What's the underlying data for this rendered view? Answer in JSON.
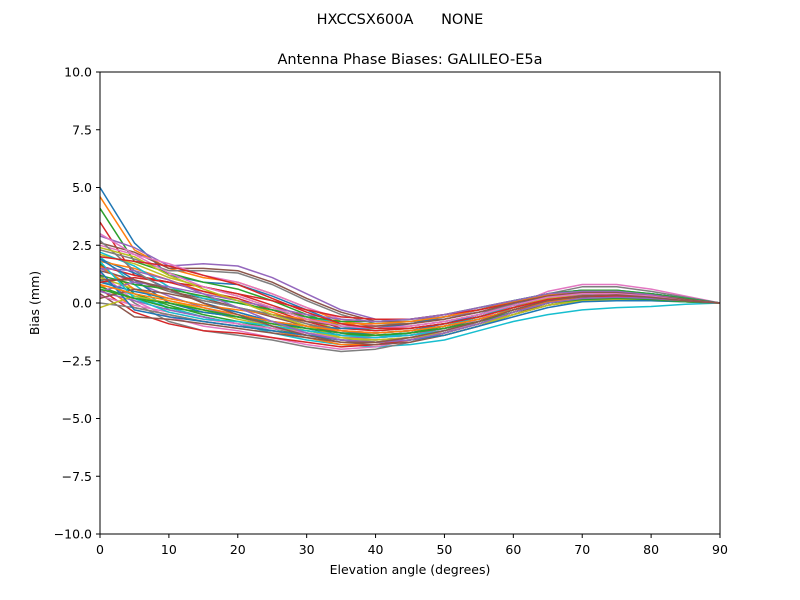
{
  "figure": {
    "suptitle": "HXCCSX600A      NONE"
  },
  "chart_data": {
    "type": "line",
    "title": "Antenna Phase Biases: GALILEO-E5a",
    "xlabel": "Elevation angle (degrees)",
    "ylabel": "Bias (mm)",
    "xlim": [
      0,
      90
    ],
    "ylim": [
      -10,
      10
    ],
    "x_ticks": [
      0,
      10,
      20,
      30,
      40,
      50,
      60,
      70,
      80,
      90
    ],
    "x_tick_labels": [
      "0",
      "10",
      "20",
      "30",
      "40",
      "50",
      "60",
      "70",
      "80",
      "90"
    ],
    "y_ticks": [
      -10,
      -7.5,
      -5,
      -2.5,
      0,
      2.5,
      5,
      7.5,
      10
    ],
    "y_tick_labels": [
      "−10.0",
      "−7.5",
      "−5.0",
      "−2.5",
      "0.0",
      "2.5",
      "5.0",
      "7.5",
      "10.0"
    ],
    "grid": false,
    "legend": "none",
    "x": [
      0,
      5,
      10,
      15,
      20,
      25,
      30,
      35,
      40,
      45,
      50,
      55,
      60,
      65,
      70,
      75,
      80,
      85,
      90
    ],
    "series_colors": [
      "#1f77b4",
      "#ff7f0e",
      "#2ca02c",
      "#d62728",
      "#9467bd",
      "#8c564b",
      "#e377c2",
      "#7f7f7f",
      "#bcbd22",
      "#17becf"
    ],
    "series": [
      {
        "values": [
          5.0,
          2.6,
          1.2,
          0.9,
          0.8,
          0.3,
          -0.3,
          -0.9,
          -1.1,
          -1.0,
          -0.8,
          -0.5,
          0.0,
          0.3,
          0.4,
          0.4,
          0.3,
          0.15,
          0.0
        ]
      },
      {
        "values": [
          4.6,
          2.3,
          1.5,
          1.1,
          0.9,
          0.4,
          -0.2,
          -0.8,
          -1.0,
          -1.0,
          -0.8,
          -0.5,
          -0.1,
          0.2,
          0.35,
          0.35,
          0.25,
          0.1,
          0.0
        ]
      },
      {
        "values": [
          4.1,
          1.8,
          1.3,
          0.9,
          0.6,
          0.1,
          -0.5,
          -1.0,
          -1.2,
          -1.1,
          -0.9,
          -0.6,
          -0.2,
          0.2,
          0.3,
          0.3,
          0.2,
          0.1,
          0.0
        ]
      },
      {
        "values": [
          3.5,
          1.2,
          0.9,
          0.7,
          0.4,
          -0.1,
          -0.6,
          -1.1,
          -1.2,
          -1.1,
          -0.9,
          -0.6,
          -0.2,
          0.15,
          0.3,
          0.3,
          0.2,
          0.1,
          0.0
        ]
      },
      {
        "values": [
          2.9,
          2.4,
          1.6,
          1.7,
          1.6,
          1.1,
          0.4,
          -0.3,
          -0.7,
          -0.7,
          -0.6,
          -0.4,
          -0.1,
          0.2,
          0.3,
          0.3,
          0.25,
          0.1,
          0.0
        ]
      },
      {
        "values": [
          2.6,
          2.2,
          1.5,
          1.5,
          1.4,
          0.9,
          0.2,
          -0.4,
          -0.8,
          -0.8,
          -0.7,
          -0.4,
          -0.1,
          0.2,
          0.3,
          0.3,
          0.2,
          0.1,
          0.0
        ]
      },
      {
        "values": [
          2.5,
          2.1,
          1.7,
          1.2,
          0.9,
          0.4,
          -0.2,
          -0.7,
          -1.0,
          -1.0,
          -0.8,
          -0.5,
          -0.1,
          0.25,
          0.35,
          0.35,
          0.25,
          0.1,
          0.0
        ]
      },
      {
        "values": [
          2.3,
          1.9,
          1.4,
          1.4,
          1.3,
          0.8,
          0.1,
          -0.5,
          -0.9,
          -0.9,
          -0.7,
          -0.4,
          -0.05,
          0.25,
          0.35,
          0.35,
          0.25,
          0.1,
          0.0
        ]
      },
      {
        "values": [
          2.1,
          1.7,
          1.1,
          0.7,
          0.3,
          -0.2,
          -0.7,
          -1.2,
          -1.4,
          -1.3,
          -1.1,
          -0.8,
          -0.4,
          0.0,
          0.2,
          0.25,
          0.2,
          0.1,
          0.0
        ]
      },
      {
        "values": [
          2.0,
          0.8,
          -0.3,
          -0.6,
          -0.9,
          -1.3,
          -1.6,
          -1.8,
          -1.9,
          -1.8,
          -1.6,
          -1.2,
          -0.8,
          -0.5,
          -0.3,
          -0.2,
          -0.15,
          -0.05,
          0.0
        ]
      },
      {
        "values": [
          1.9,
          1.3,
          0.6,
          0.0,
          -0.4,
          -0.8,
          -1.1,
          -1.4,
          -1.5,
          -1.4,
          -1.2,
          -0.8,
          -0.4,
          0.0,
          0.2,
          0.25,
          0.2,
          0.1,
          0.0
        ]
      },
      {
        "values": [
          1.8,
          1.5,
          1.0,
          0.5,
          0.1,
          -0.4,
          -0.9,
          -1.3,
          -1.5,
          -1.4,
          -1.2,
          -0.9,
          -0.5,
          -0.1,
          0.15,
          0.2,
          0.15,
          0.05,
          0.0
        ]
      },
      {
        "values": [
          1.7,
          0.4,
          -0.1,
          -0.5,
          -0.8,
          -1.1,
          -1.4,
          -1.6,
          -1.7,
          -1.6,
          -1.3,
          -0.9,
          -0.4,
          0.0,
          0.2,
          0.25,
          0.2,
          0.1,
          0.0
        ]
      },
      {
        "values": [
          1.6,
          1.2,
          0.9,
          0.5,
          0.2,
          -0.3,
          -0.8,
          -1.2,
          -1.3,
          -1.2,
          -1.0,
          -0.7,
          -0.3,
          0.1,
          0.25,
          0.3,
          0.2,
          0.1,
          0.0
        ]
      },
      {
        "values": [
          1.5,
          0.9,
          0.3,
          -0.2,
          -0.6,
          -1.0,
          -1.3,
          -1.6,
          -1.7,
          -1.6,
          -1.3,
          -0.9,
          -0.5,
          -0.1,
          0.1,
          0.2,
          0.15,
          0.05,
          0.0
        ]
      },
      {
        "values": [
          1.4,
          1.0,
          0.5,
          0.2,
          -0.2,
          -0.6,
          -1.0,
          -1.3,
          -1.4,
          -1.3,
          -1.1,
          -0.7,
          -0.3,
          0.1,
          0.25,
          0.3,
          0.2,
          0.1,
          0.0
        ]
      },
      {
        "values": [
          1.3,
          0.1,
          -0.6,
          -1.0,
          -1.2,
          -1.5,
          -1.8,
          -2.0,
          -1.9,
          -1.6,
          -1.2,
          -0.7,
          -0.1,
          0.5,
          0.8,
          0.8,
          0.6,
          0.3,
          0.0
        ]
      },
      {
        "values": [
          1.2,
          0.0,
          -0.8,
          -1.2,
          -1.4,
          -1.6,
          -1.9,
          -2.1,
          -2.0,
          -1.7,
          -1.3,
          -0.8,
          -0.2,
          0.4,
          0.7,
          0.7,
          0.5,
          0.25,
          0.0
        ]
      },
      {
        "values": [
          1.1,
          0.6,
          0.1,
          -0.3,
          -0.7,
          -1.0,
          -1.3,
          -1.5,
          -1.5,
          -1.3,
          -1.0,
          -0.6,
          -0.2,
          0.2,
          0.4,
          0.45,
          0.35,
          0.15,
          0.0
        ]
      },
      {
        "values": [
          1.0,
          0.3,
          -0.2,
          -0.6,
          -0.9,
          -1.2,
          -1.4,
          -1.5,
          -1.5,
          -1.3,
          -1.0,
          -0.6,
          -0.1,
          0.3,
          0.5,
          0.5,
          0.4,
          0.2,
          0.0
        ]
      },
      {
        "values": [
          0.9,
          0.5,
          0.2,
          -0.1,
          -0.4,
          -0.8,
          -1.1,
          -1.3,
          -1.3,
          -1.2,
          -0.9,
          -0.5,
          -0.1,
          0.3,
          0.5,
          0.5,
          0.4,
          0.2,
          0.0
        ]
      },
      {
        "values": [
          0.8,
          -0.2,
          -0.5,
          -0.8,
          -1.0,
          -1.2,
          -1.5,
          -1.8,
          -1.8,
          -1.6,
          -1.3,
          -0.9,
          -0.4,
          0.1,
          0.3,
          0.35,
          0.3,
          0.1,
          0.0
        ]
      },
      {
        "values": [
          0.7,
          0.2,
          -0.2,
          -0.4,
          -0.6,
          -0.9,
          -1.2,
          -1.4,
          -1.4,
          -1.3,
          -1.0,
          -0.7,
          -0.3,
          0.1,
          0.3,
          0.35,
          0.25,
          0.1,
          0.0
        ]
      },
      {
        "values": [
          0.6,
          -0.4,
          -0.9,
          -1.2,
          -1.3,
          -1.5,
          -1.7,
          -1.9,
          -1.8,
          -1.6,
          -1.3,
          -0.9,
          -0.4,
          0.1,
          0.3,
          0.35,
          0.3,
          0.1,
          0.0
        ]
      },
      {
        "values": [
          0.5,
          0.1,
          -0.3,
          -0.6,
          -0.9,
          -1.1,
          -1.3,
          -1.5,
          -1.5,
          -1.4,
          -1.1,
          -0.8,
          -0.4,
          0.0,
          0.2,
          0.25,
          0.2,
          0.1,
          0.0
        ]
      },
      {
        "values": [
          0.4,
          -0.6,
          -0.7,
          -0.9,
          -1.1,
          -1.3,
          -1.5,
          -1.7,
          -1.8,
          -1.7,
          -1.4,
          -1.0,
          -0.5,
          0.0,
          0.2,
          0.25,
          0.2,
          0.1,
          0.0
        ]
      },
      {
        "values": [
          0.3,
          -0.1,
          -0.4,
          -0.7,
          -0.9,
          -1.1,
          -1.3,
          -1.5,
          -1.6,
          -1.5,
          -1.2,
          -0.9,
          -0.5,
          -0.1,
          0.1,
          0.2,
          0.15,
          0.05,
          0.0
        ]
      },
      {
        "values": [
          0.0,
          -0.2,
          -0.5,
          -0.8,
          -1.0,
          -1.2,
          -1.4,
          -1.6,
          -1.6,
          -1.5,
          -1.3,
          -0.9,
          -0.5,
          -0.1,
          0.1,
          0.2,
          0.15,
          0.05,
          0.0
        ]
      },
      {
        "values": [
          -0.2,
          0.3,
          0.0,
          -0.3,
          -0.6,
          -0.9,
          -1.2,
          -1.5,
          -1.6,
          -1.5,
          -1.3,
          -0.9,
          -0.5,
          -0.1,
          0.15,
          0.2,
          0.15,
          0.05,
          0.0
        ]
      },
      {
        "values": [
          2.2,
          1.6,
          0.7,
          0.2,
          0.0,
          -0.3,
          -0.6,
          -0.9,
          -0.9,
          -0.8,
          -0.6,
          -0.3,
          0.1,
          0.4,
          0.55,
          0.55,
          0.4,
          0.2,
          0.0
        ]
      },
      {
        "values": [
          1.9,
          1.0,
          0.0,
          -0.4,
          -0.6,
          -0.8,
          -1.0,
          -1.1,
          -1.1,
          -0.9,
          -0.6,
          -0.3,
          0.1,
          0.4,
          0.55,
          0.5,
          0.4,
          0.2,
          0.0
        ]
      },
      {
        "values": [
          1.6,
          0.6,
          0.2,
          -0.1,
          -0.3,
          -0.5,
          -0.7,
          -0.9,
          -0.9,
          -0.8,
          -0.6,
          -0.3,
          0.05,
          0.35,
          0.5,
          0.5,
          0.35,
          0.15,
          0.0
        ]
      },
      {
        "values": [
          1.2,
          0.8,
          0.6,
          0.3,
          0.0,
          -0.3,
          -0.6,
          -0.8,
          -0.8,
          -0.7,
          -0.5,
          -0.2,
          0.1,
          0.4,
          0.55,
          0.55,
          0.4,
          0.2,
          0.0
        ]
      },
      {
        "values": [
          0.9,
          1.1,
          0.9,
          0.7,
          0.4,
          0.1,
          -0.3,
          -0.6,
          -0.7,
          -0.7,
          -0.5,
          -0.3,
          0.0,
          0.3,
          0.45,
          0.45,
          0.35,
          0.15,
          0.0
        ]
      },
      {
        "values": [
          0.5,
          0.9,
          0.7,
          0.4,
          0.1,
          -0.2,
          -0.5,
          -0.7,
          -0.8,
          -0.7,
          -0.5,
          -0.2,
          0.1,
          0.4,
          0.5,
          0.5,
          0.35,
          0.15,
          0.0
        ]
      },
      {
        "values": [
          0.2,
          0.6,
          0.4,
          0.1,
          -0.2,
          -0.5,
          -0.8,
          -1.0,
          -1.0,
          -0.9,
          -0.7,
          -0.4,
          0.0,
          0.3,
          0.45,
          0.45,
          0.3,
          0.15,
          0.0
        ]
      },
      {
        "values": [
          3.0,
          2.1,
          1.3,
          0.7,
          0.3,
          -0.2,
          -0.7,
          -1.0,
          -1.1,
          -1.0,
          -0.8,
          -0.5,
          -0.1,
          0.25,
          0.4,
          0.4,
          0.3,
          0.1,
          0.0
        ]
      },
      {
        "values": [
          2.7,
          1.4,
          0.5,
          0.1,
          -0.2,
          -0.5,
          -0.9,
          -1.2,
          -1.3,
          -1.2,
          -1.0,
          -0.7,
          -0.3,
          0.1,
          0.3,
          0.3,
          0.2,
          0.1,
          0.0
        ]
      },
      {
        "values": [
          2.4,
          2.0,
          1.2,
          0.6,
          0.1,
          -0.5,
          -1.0,
          -1.5,
          -1.7,
          -1.6,
          -1.4,
          -1.0,
          -0.5,
          -0.1,
          0.1,
          0.15,
          0.1,
          0.05,
          0.0
        ]
      },
      {
        "values": [
          1.8,
          0.2,
          -0.4,
          -0.7,
          -0.8,
          -1.0,
          -1.2,
          -1.4,
          -1.5,
          -1.4,
          -1.2,
          -0.8,
          -0.4,
          0.0,
          0.2,
          0.25,
          0.2,
          0.1,
          0.0
        ]
      },
      {
        "values": [
          1.4,
          -0.3,
          -0.6,
          -0.8,
          -1.0,
          -1.2,
          -1.4,
          -1.6,
          -1.7,
          -1.6,
          -1.4,
          -1.0,
          -0.6,
          -0.2,
          0.05,
          0.1,
          0.1,
          0.05,
          0.0
        ]
      },
      {
        "values": [
          0.8,
          0.4,
          0.1,
          -0.2,
          -0.5,
          -0.8,
          -1.0,
          -1.2,
          -1.3,
          -1.2,
          -1.0,
          -0.7,
          -0.3,
          0.05,
          0.2,
          0.25,
          0.2,
          0.1,
          0.0
        ]
      },
      {
        "values": [
          0.6,
          0.2,
          0.0,
          -0.3,
          -0.6,
          -0.9,
          -1.1,
          -1.3,
          -1.4,
          -1.3,
          -1.1,
          -0.8,
          -0.4,
          0.0,
          0.15,
          0.2,
          0.15,
          0.05,
          0.0
        ]
      },
      {
        "values": [
          2.0,
          1.8,
          1.6,
          1.2,
          0.8,
          0.2,
          -0.4,
          -0.9,
          -1.1,
          -1.1,
          -0.9,
          -0.6,
          -0.2,
          0.15,
          0.3,
          0.3,
          0.2,
          0.1,
          0.0
        ]
      },
      {
        "values": [
          1.5,
          1.4,
          1.0,
          0.4,
          -0.2,
          -0.8,
          -1.3,
          -1.6,
          -1.7,
          -1.6,
          -1.3,
          -0.9,
          -0.4,
          0.0,
          0.2,
          0.25,
          0.2,
          0.1,
          0.0
        ]
      },
      {
        "values": [
          1.0,
          1.0,
          0.6,
          0.0,
          -0.5,
          -1.0,
          -1.4,
          -1.7,
          -1.7,
          -1.5,
          -1.2,
          -0.8,
          -0.3,
          0.1,
          0.3,
          0.35,
          0.25,
          0.1,
          0.0
        ]
      }
    ]
  }
}
